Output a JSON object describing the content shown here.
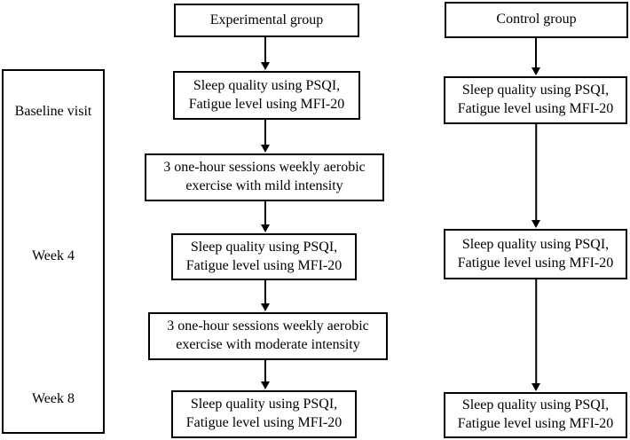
{
  "timeline": {
    "baseline": "Baseline visit",
    "week4": "Week 4",
    "week8": "Week 8"
  },
  "experimental": {
    "header": "Experimental  group",
    "assessment_baseline": "Sleep quality using PSQI,\nFatigue level using MFI-20",
    "intervention_mild": "3 one-hour sessions weekly aerobic\nexercise with mild intensity",
    "assessment_week4": "Sleep quality using PSQI,\nFatigue level using MFI-20",
    "intervention_moderate": "3 one-hour sessions weekly aerobic\nexercise with moderate  intensity",
    "assessment_week8": "Sleep quality using PSQI,\nFatigue level using MFI-20"
  },
  "control": {
    "header": "Control group",
    "assessment_baseline": "Sleep quality using PSQI,\nFatigue level using MFI-20",
    "assessment_week4": "Sleep quality using PSQI,\nFatigue level using MFI-20",
    "assessment_week8": "Sleep quality using PSQI,\nFatigue level using MFI-20"
  },
  "colors": {
    "line": "#000000",
    "text": "#000000",
    "background": "#ffffff"
  }
}
